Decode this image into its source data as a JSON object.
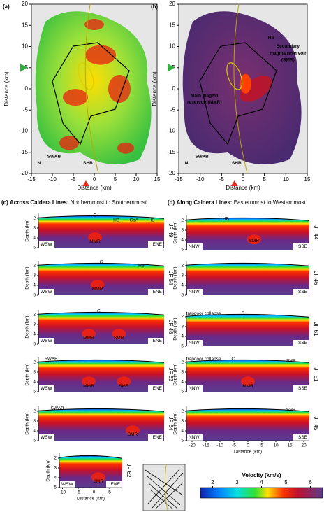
{
  "panel_a": {
    "label": "(a)",
    "xlabel": "Distance (km)",
    "ylabel": "Distance (km)",
    "xlim": [
      -15,
      15
    ],
    "ylim": [
      -20,
      20
    ],
    "xticks": [
      -15,
      -10,
      -5,
      0,
      5,
      10,
      15
    ],
    "yticks": [
      20,
      15,
      10,
      5,
      0,
      -5,
      -10,
      -15,
      -20
    ],
    "annotations": [
      "SWAB",
      "SHB",
      "N"
    ]
  },
  "panel_b": {
    "label": "(b)",
    "xlabel": "Distance (km)",
    "ylabel": "Distance (km)",
    "xlim": [
      -15,
      15
    ],
    "ylim": [
      -20,
      20
    ],
    "xticks": [
      -15,
      -10,
      -5,
      0,
      5,
      10,
      15
    ],
    "yticks": [
      20,
      15,
      10,
      5,
      0,
      -5,
      -10,
      -15,
      -20
    ],
    "annotations": [
      "HB",
      "Secondary",
      "magma reservoir",
      "(SMR)",
      "Main magma",
      "reservoir (MMR)",
      "SWAB",
      "SHB",
      "N"
    ]
  },
  "panel_c": {
    "label": "(c)",
    "title_bold": "Across Caldera Lines:",
    "title": "Northernmost to Southernmost",
    "ylabel": "Depth (km)",
    "ylim": [
      1.5,
      5
    ],
    "yticks": [
      2,
      3,
      4,
      5
    ],
    "xlabel": "Distance (km)",
    "xlim": [
      -11,
      9
    ],
    "xticks": [
      -10,
      -5,
      0,
      5
    ],
    "sections": [
      {
        "line": "JF 49",
        "left": "WSW",
        "right": "ENE",
        "labels": [
          "C",
          "HB",
          "CoA",
          "HB",
          "MMR"
        ]
      },
      {
        "line": "JF 54",
        "left": "WSW",
        "right": "ENE",
        "labels": [
          "C",
          "HB",
          "MMR"
        ]
      },
      {
        "line": "JF 48",
        "left": "WSW",
        "right": "ENE",
        "labels": [
          "C",
          "MMR",
          "SMR"
        ]
      },
      {
        "line": "JF 63",
        "left": "WSW",
        "right": "ENE",
        "labels": [
          "SWAB",
          "MMR",
          "SMR"
        ]
      },
      {
        "line": "JF 64",
        "left": "WSW",
        "right": "ENE",
        "labels": [
          "SWAB",
          "SMR"
        ]
      },
      {
        "line": "JF 62",
        "left": "WSW",
        "right": "ENE",
        "labels": [
          "SMR"
        ]
      }
    ]
  },
  "panel_d": {
    "label": "(d)",
    "title_bold": "Along Caldera Lines:",
    "title": "Easternmost to Westernmost",
    "ylabel": "Depth (km)",
    "ylim": [
      1.5,
      5
    ],
    "yticks": [
      2,
      3,
      4,
      5
    ],
    "xlabel": "Distance (km)",
    "xlim": [
      -22,
      22
    ],
    "xticks": [
      -20,
      -15,
      -10,
      -5,
      0,
      5,
      10,
      15,
      20
    ],
    "sections": [
      {
        "line": "JF 44",
        "left": "NNW",
        "right": "SSE",
        "labels": [
          "HB",
          "SMR"
        ]
      },
      {
        "line": "JF 46",
        "left": "NNW",
        "right": "SSE",
        "labels": []
      },
      {
        "line": "JF 61",
        "left": "NNW",
        "right": "SSE",
        "labels": [
          "trapdoor collapse",
          "C"
        ]
      },
      {
        "line": "JF 51",
        "left": "NNW",
        "right": "SSE",
        "labels": [
          "trapdoor collapse",
          "C",
          "SHB",
          "MMR"
        ]
      },
      {
        "line": "JF 45",
        "left": "NNW",
        "right": "SSE",
        "labels": [
          "SHB"
        ]
      }
    ]
  },
  "colorbar": {
    "title": "Velocity (km/s)",
    "lim": [
      1.5,
      6.5
    ],
    "ticks": [
      2,
      3,
      4,
      5,
      6
    ]
  }
}
